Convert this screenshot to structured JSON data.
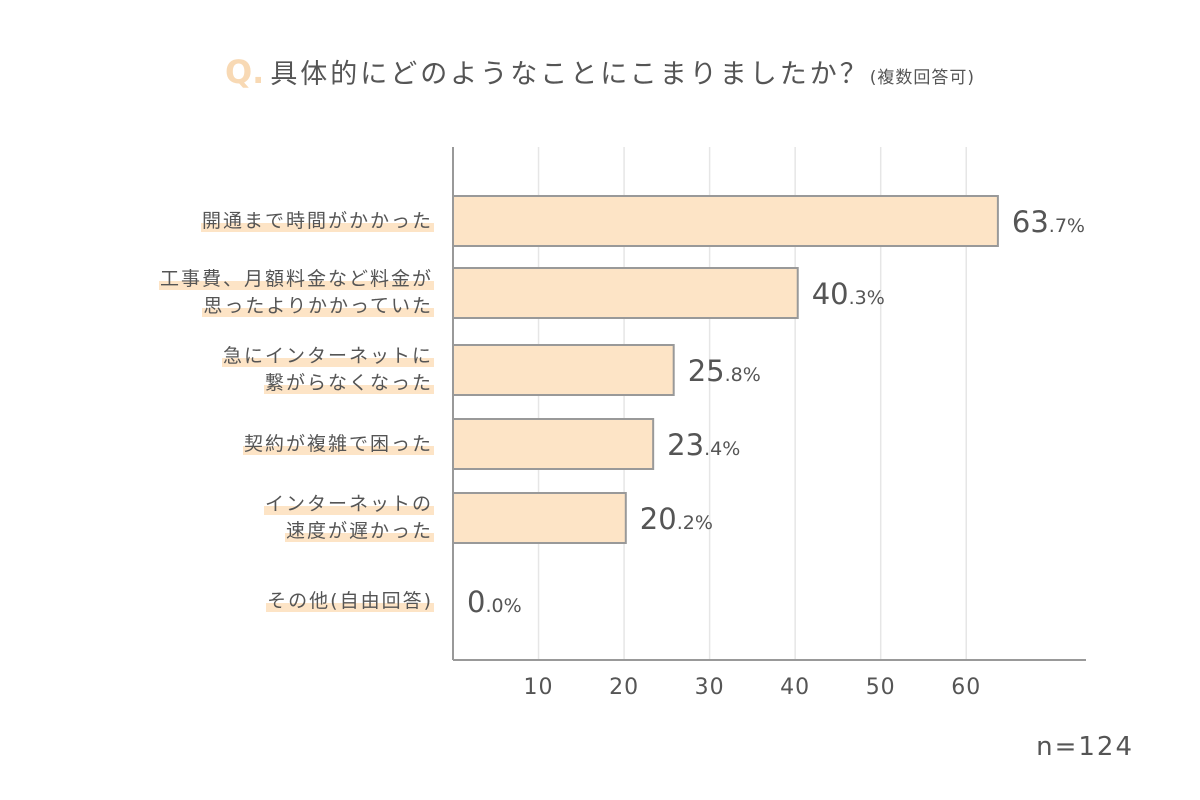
{
  "title": {
    "q_mark": "Q.",
    "text": "具体的にどのようなことにこまりましたか？",
    "note": "(複数回答可)"
  },
  "sample_size": "n=124",
  "colors": {
    "bar_fill": "#fde4c6",
    "bar_stroke": "#999999",
    "grid": "#e6e6e6",
    "axis": "#999999",
    "highlight": "#fde4c6",
    "q_mark": "#f8d9b4",
    "text": "#555555"
  },
  "chart_data": {
    "type": "bar",
    "orientation": "horizontal",
    "categories": [
      [
        "開通まで時間がかかった"
      ],
      [
        "工事費、月額料金など料金が",
        "思ったよりかかっていた"
      ],
      [
        "急にインターネットに",
        "繋がらなくなった"
      ],
      [
        "契約が複雑で困った"
      ],
      [
        "インターネットの",
        "速度が遅かった"
      ],
      [
        "その他(自由回答)"
      ]
    ],
    "values": [
      63.7,
      40.3,
      25.8,
      23.4,
      20.2,
      0.0
    ],
    "value_labels": [
      {
        "int": "63",
        "dec": ".7%"
      },
      {
        "int": "40",
        "dec": ".3%"
      },
      {
        "int": "25",
        "dec": ".8%"
      },
      {
        "int": "23",
        "dec": ".4%"
      },
      {
        "int": "20",
        "dec": ".2%"
      },
      {
        "int": "0",
        "dec": ".0%"
      }
    ],
    "xticks": [
      10,
      20,
      30,
      40,
      50,
      60
    ],
    "xlim": [
      0,
      74
    ],
    "grid": true,
    "unit": "%"
  }
}
